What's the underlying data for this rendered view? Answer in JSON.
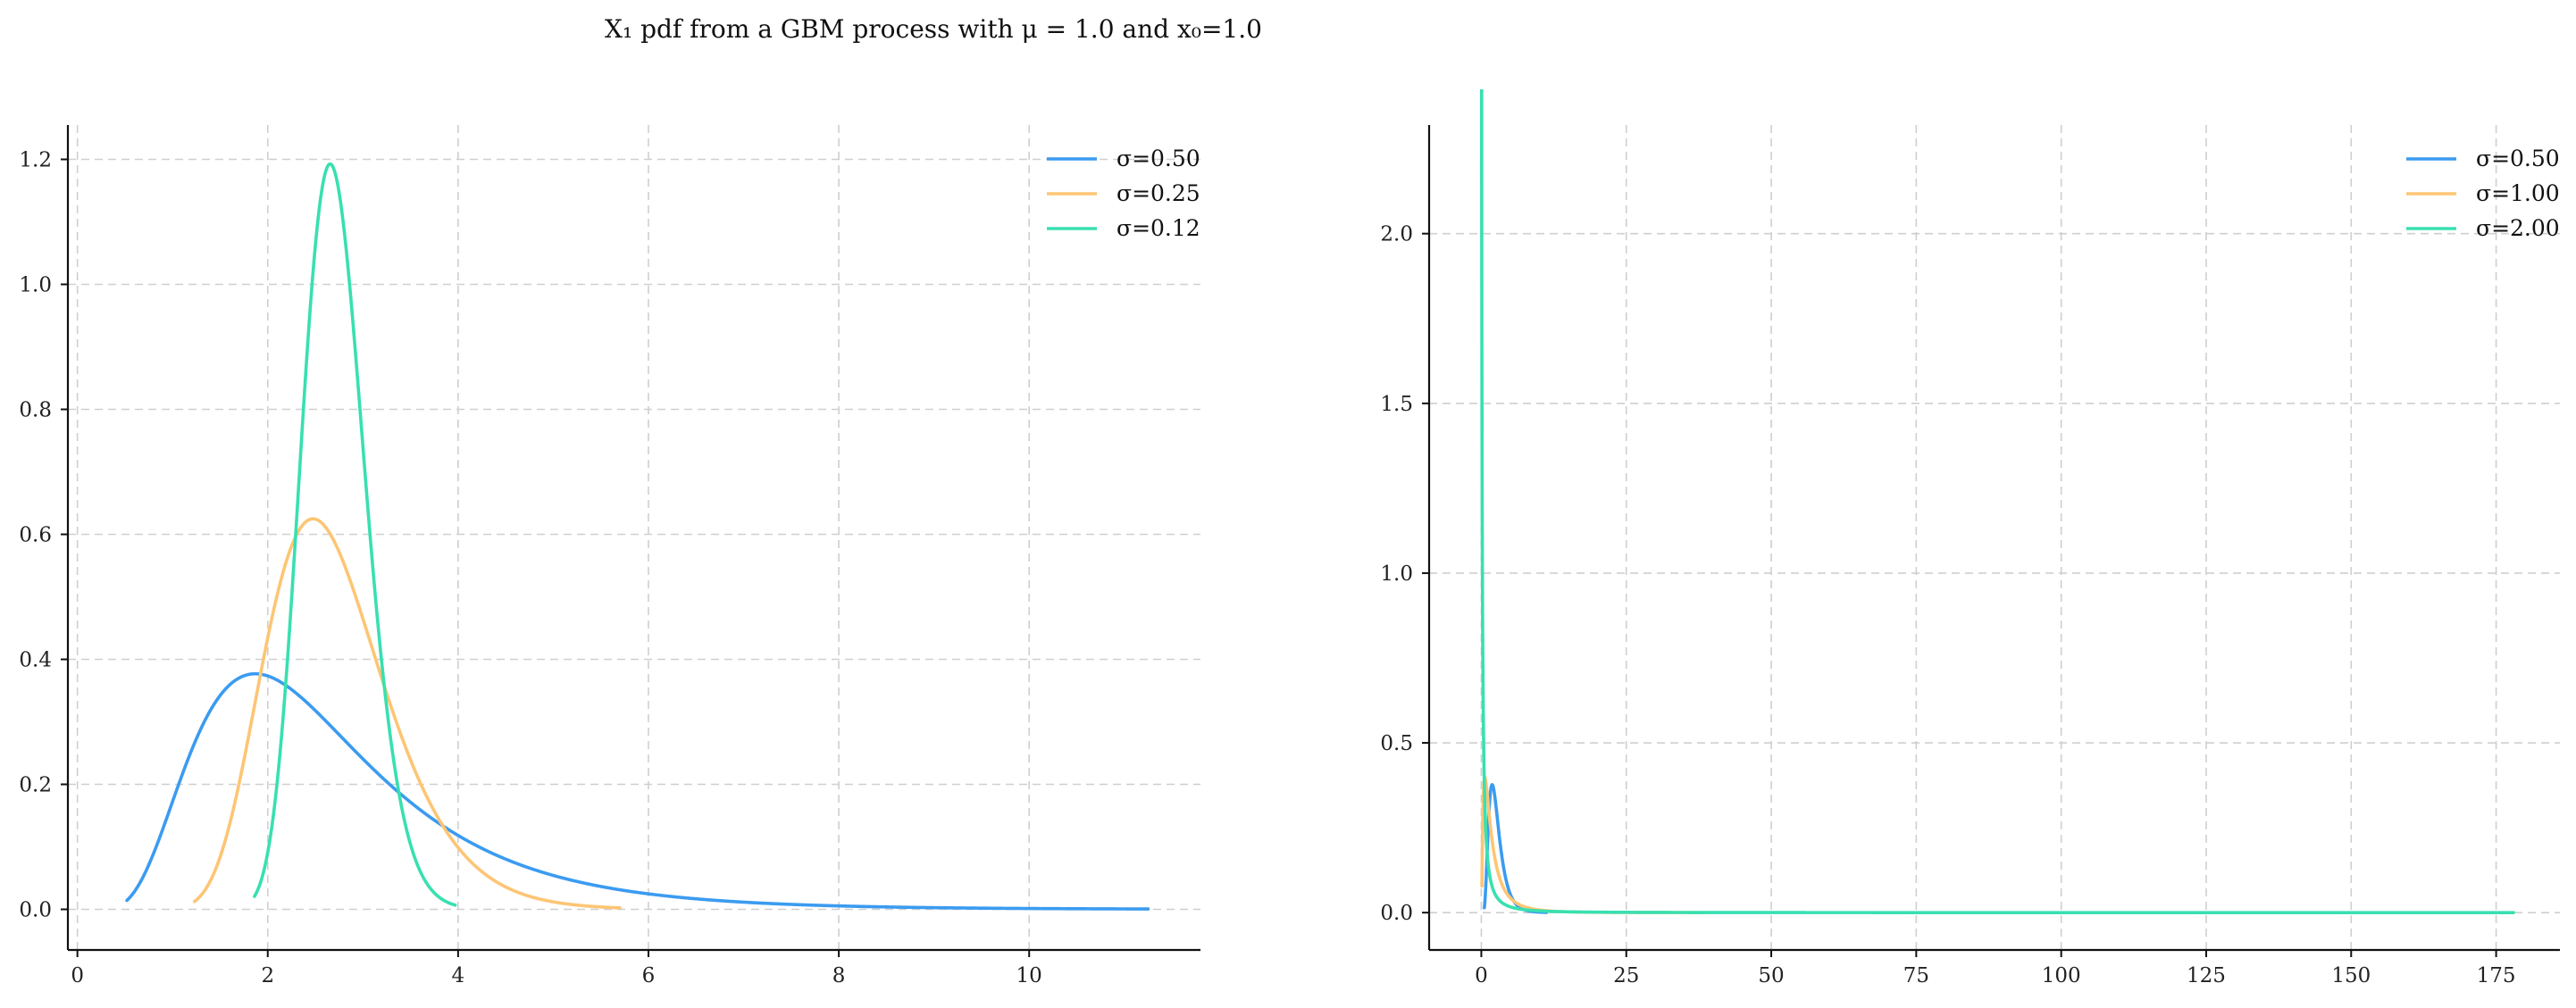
{
  "suptitle": "X₁ pdf from a GBM process with μ = 1.0 and x₀=1.0",
  "chart_data": [
    {
      "type": "line",
      "title": "",
      "xlabel": "",
      "ylabel": "",
      "xlim": [
        -0.1,
        11.8
      ],
      "ylim": [
        -0.065,
        1.255
      ],
      "xticks": [
        0,
        2,
        4,
        6,
        8,
        10
      ],
      "yticks": [
        0.0,
        0.2,
        0.4,
        0.6,
        0.8,
        1.0,
        1.2
      ],
      "xtick_labels": [
        "0",
        "2",
        "4",
        "6",
        "8",
        "10"
      ],
      "ytick_labels": [
        "0.0",
        "0.2",
        "0.4",
        "0.6",
        "0.8",
        "1.0",
        "1.2"
      ],
      "grid": true,
      "legend_position": "top-right",
      "series": [
        {
          "name": "σ=0.50",
          "color": "#3b9bf0",
          "sigma": 0.5,
          "x_range": [
            0.52,
            11.25
          ]
        },
        {
          "name": "σ=0.25",
          "color": "#fdc574",
          "sigma": 0.25,
          "x_range": [
            1.23,
            5.7
          ]
        },
        {
          "name": "σ=0.12",
          "color": "#38e0b0",
          "sigma": 0.125,
          "x_range": [
            1.86,
            3.97
          ]
        }
      ]
    },
    {
      "type": "line",
      "title": "",
      "xlabel": "",
      "ylabel": "",
      "xlim": [
        -9,
        186
      ],
      "ylim": [
        -0.11,
        2.32
      ],
      "xticks": [
        0,
        25,
        50,
        75,
        100,
        125,
        150,
        175
      ],
      "yticks": [
        0.0,
        0.5,
        1.0,
        1.5,
        2.0
      ],
      "xtick_labels": [
        "0",
        "25",
        "50",
        "75",
        "100",
        "125",
        "150",
        "175"
      ],
      "ytick_labels": [
        "0.0",
        "0.5",
        "1.0",
        "1.5",
        "2.0"
      ],
      "grid": true,
      "legend_position": "top-right",
      "series": [
        {
          "name": "σ=0.50",
          "color": "#3b9bf0",
          "sigma": 0.5,
          "x_range": [
            0.52,
            11.25
          ]
        },
        {
          "name": "σ=1.00",
          "color": "#fdc574",
          "sigma": 1.0,
          "x_range": [
            0.1,
            38
          ]
        },
        {
          "name": "σ=2.00",
          "color": "#38e0b0",
          "sigma": 2.0,
          "x_range": [
            0.01,
            178
          ]
        }
      ]
    }
  ]
}
